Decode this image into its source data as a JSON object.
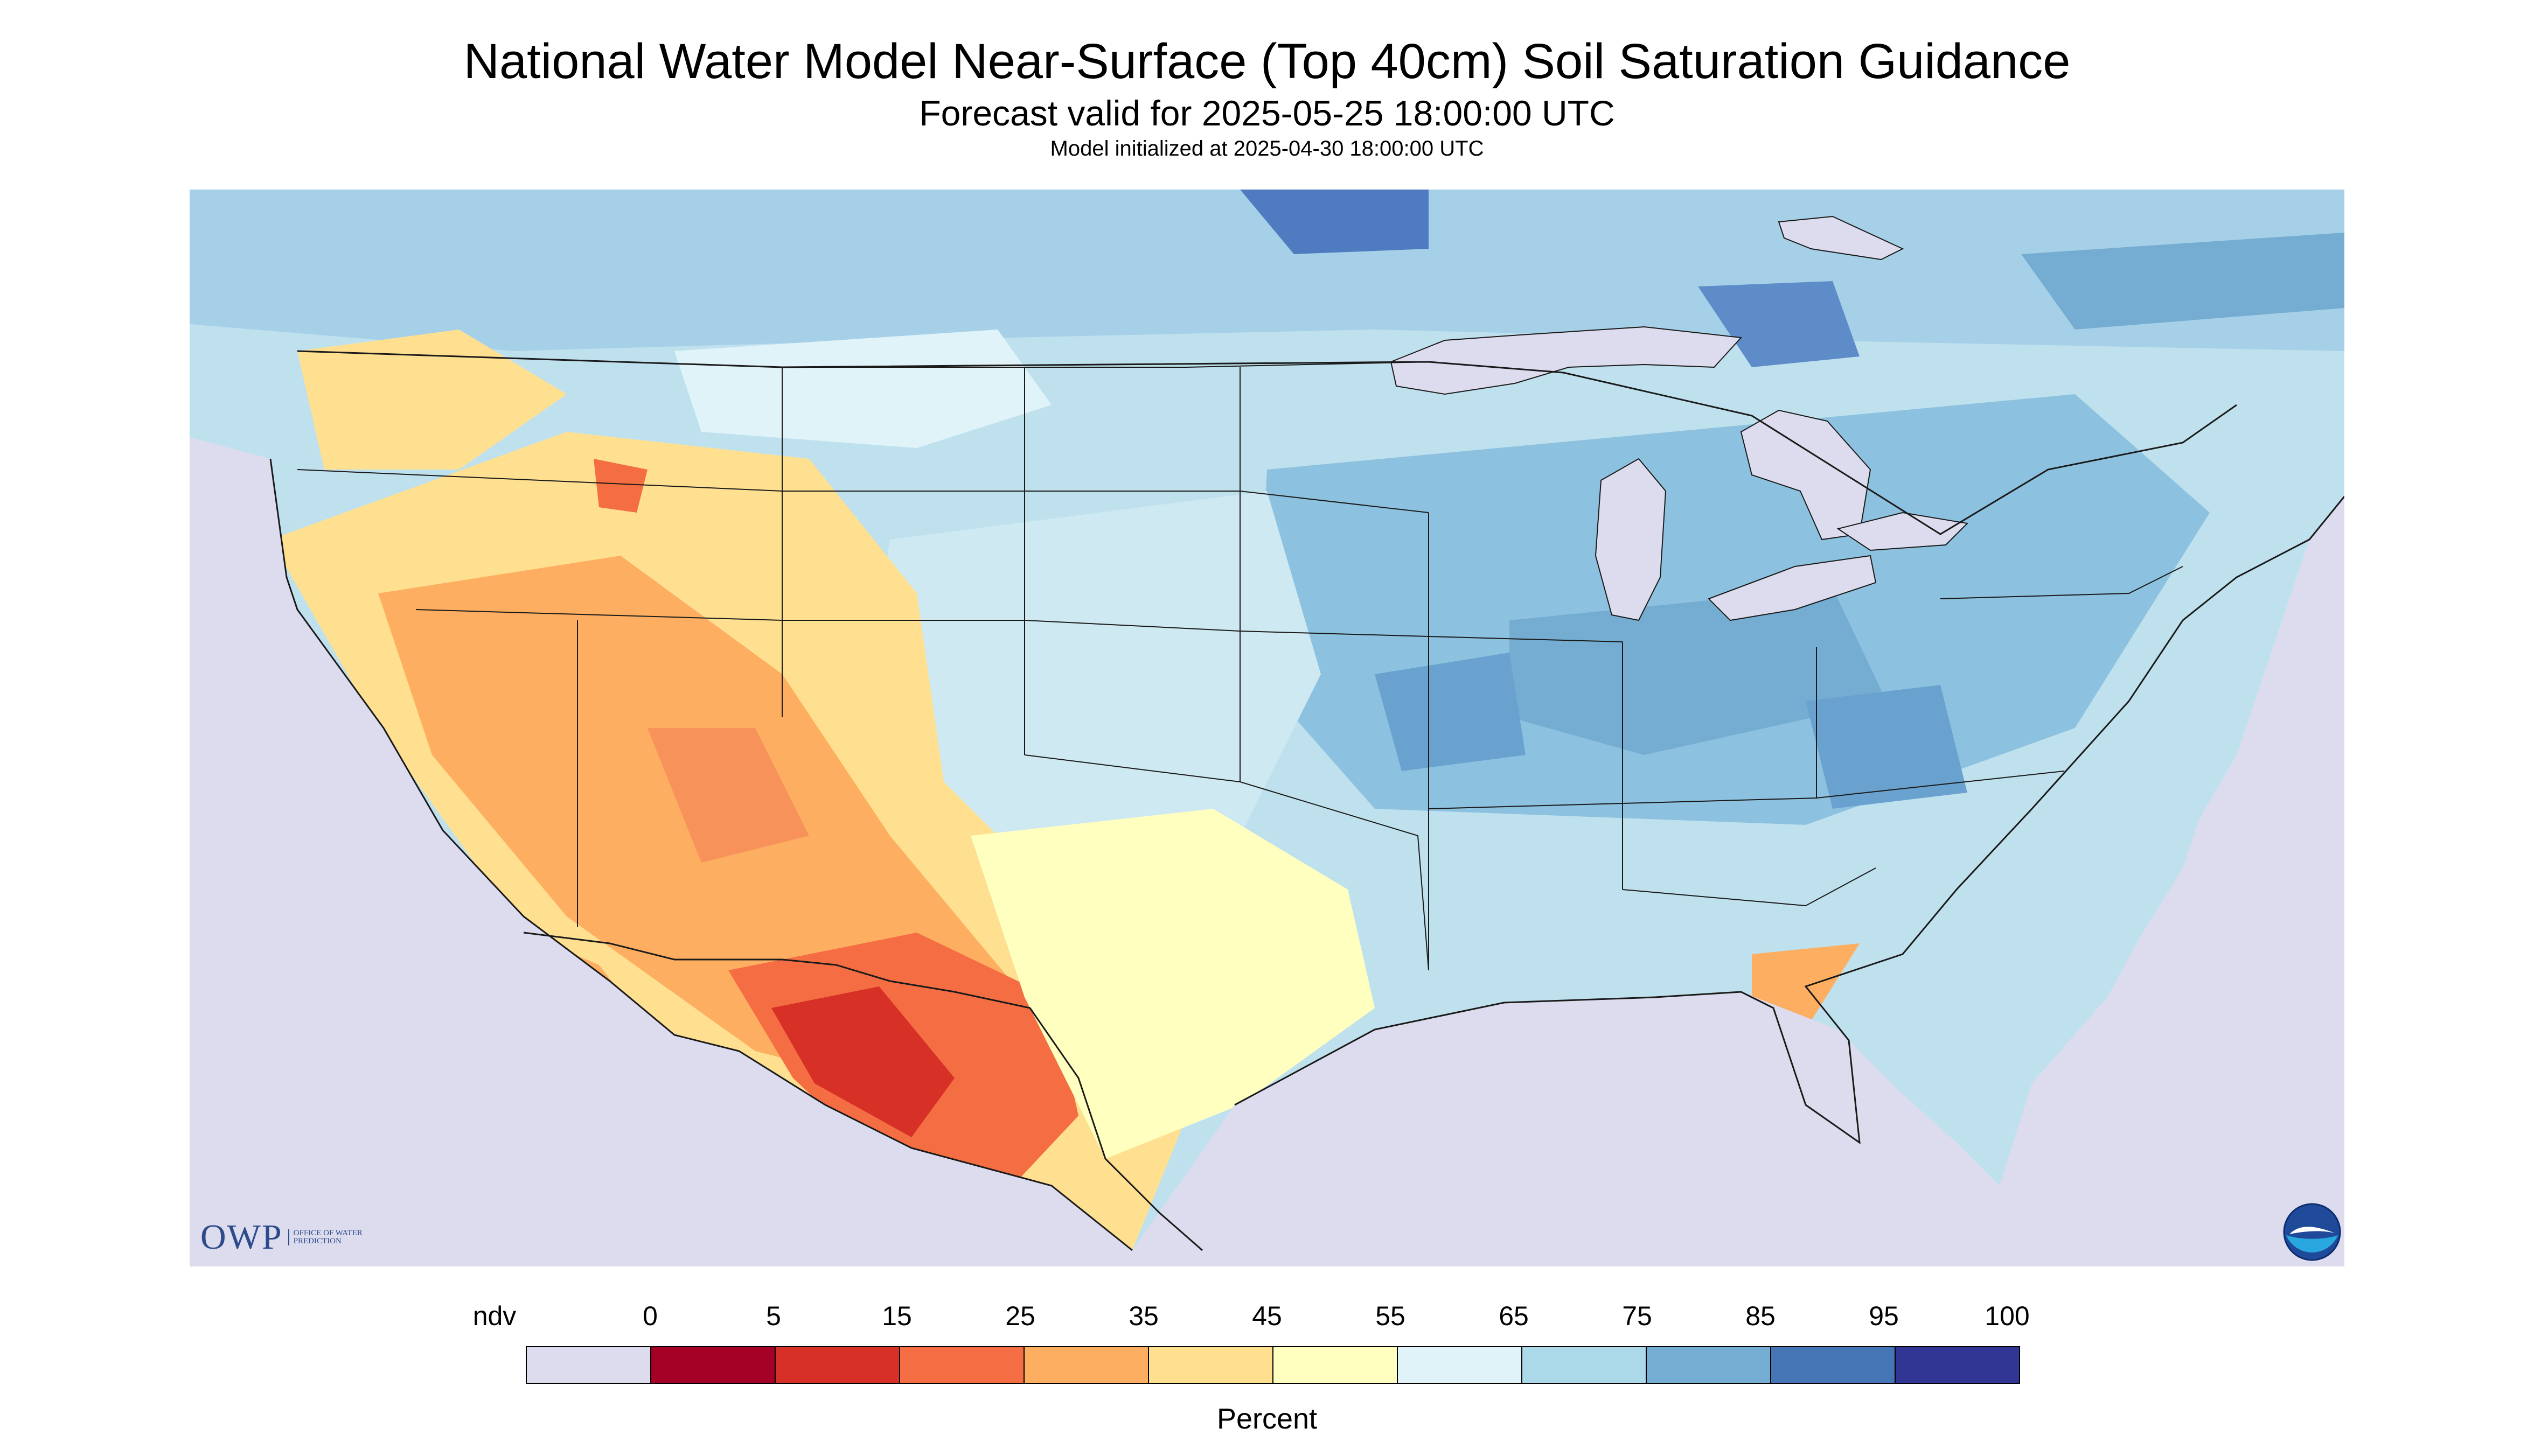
{
  "title": "National Water Model Near-Surface (Top 40cm) Soil Saturation Guidance",
  "subtitle": "Forecast valid for 2025-05-25 18:00:00 UTC",
  "init_line": "Model initialized at 2025-04-30 18:00:00 UTC",
  "logos": {
    "owp_mark": "OWP",
    "owp_text": "OFFICE OF WATER PREDICTION",
    "noaa_text": "NOAA"
  },
  "legend": {
    "unit": "Percent",
    "labels": [
      "ndv",
      "0",
      "5",
      "15",
      "25",
      "35",
      "45",
      "55",
      "65",
      "75",
      "85",
      "95",
      "100"
    ],
    "colors": [
      "#dcdcee",
      "#a50026",
      "#d73027",
      "#f46d43",
      "#fdae61",
      "#fee090",
      "#ffffbf",
      "#e0f3f8",
      "#abd9e9",
      "#74add1",
      "#4575b4",
      "#313695"
    ]
  },
  "map": {
    "background_color": "#dcdcee",
    "water_color": "#dcdcee",
    "border_color": "#1a1a1a"
  }
}
